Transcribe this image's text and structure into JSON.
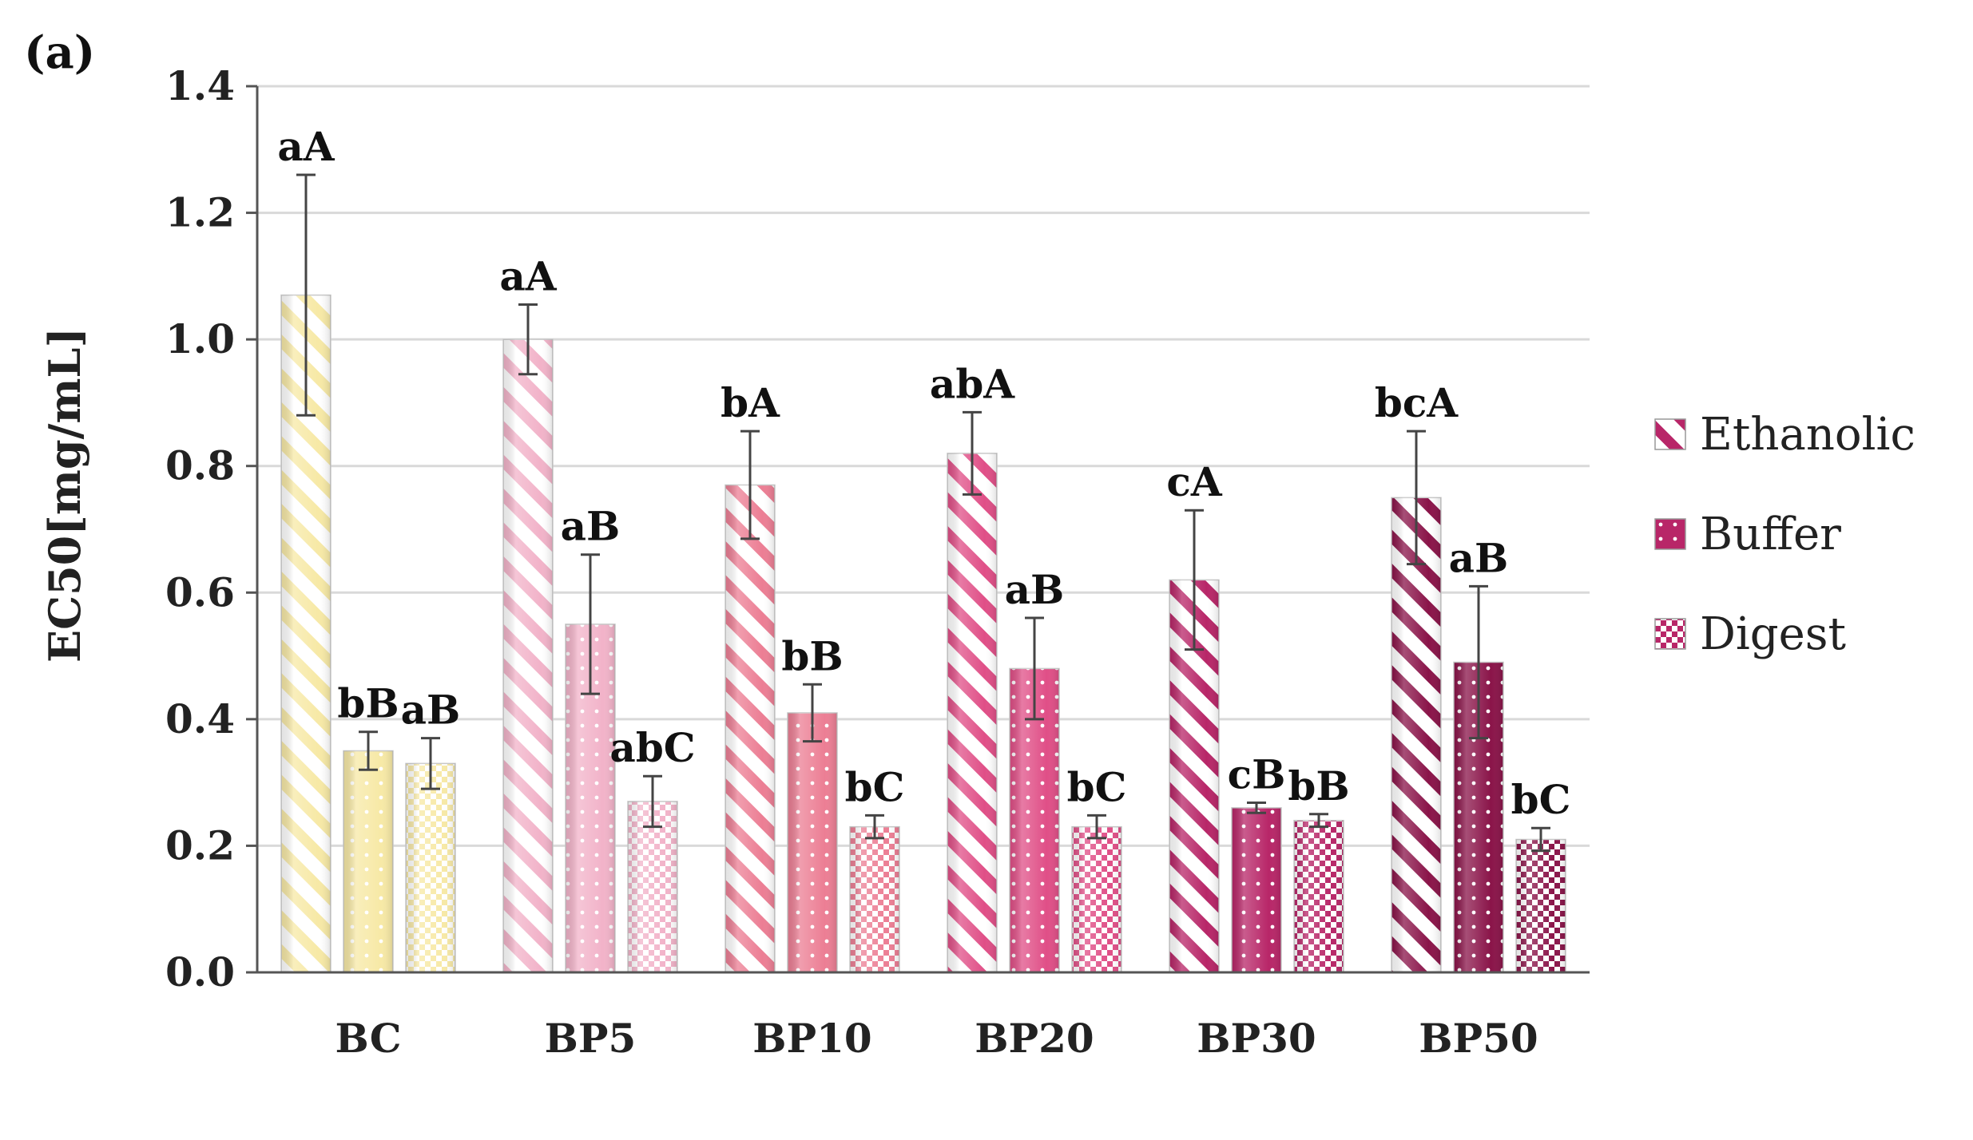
{
  "chart_data": {
    "panel": "(a)",
    "type": "bar",
    "title": "",
    "xlabel": "",
    "ylabel": "EC50[mg/mL]",
    "ylim": [
      0,
      1.4
    ],
    "yticks": [
      "0.0",
      "0.2",
      "0.4",
      "0.6",
      "0.8",
      "1.0",
      "1.2",
      "1.4"
    ],
    "grid": true,
    "legend_position": "right",
    "categories": [
      "BC",
      "BP5",
      "BP10",
      "BP20",
      "BP30",
      "BP50"
    ],
    "category_colors": [
      "#f7e9a6",
      "#f2b3c9",
      "#ec7e94",
      "#e04f87",
      "#b82668",
      "#8a1449"
    ],
    "series": [
      {
        "name": "Ethanolic",
        "pattern": "diagonal-stripes",
        "values": [
          1.07,
          1.0,
          0.77,
          0.82,
          0.62,
          0.75
        ],
        "errors": [
          0.19,
          0.055,
          0.085,
          0.065,
          0.11,
          0.105
        ],
        "labels": [
          "aA",
          "aA",
          "bA",
          "abA",
          "cA",
          "bcA"
        ]
      },
      {
        "name": "Buffer",
        "pattern": "dots",
        "values": [
          0.35,
          0.55,
          0.41,
          0.48,
          0.26,
          0.49
        ],
        "errors": [
          0.03,
          0.11,
          0.045,
          0.08,
          0.008,
          0.12
        ],
        "labels": [
          "bB",
          "aB",
          "bB",
          "aB",
          "cB",
          "aB"
        ]
      },
      {
        "name": "Digest",
        "pattern": "checkerboard",
        "values": [
          0.33,
          0.27,
          0.23,
          0.23,
          0.24,
          0.21
        ],
        "errors": [
          0.04,
          0.04,
          0.018,
          0.018,
          0.01,
          0.018
        ],
        "labels": [
          "aB",
          "abC",
          "bC",
          "bC",
          "bB",
          "bC"
        ]
      }
    ]
  }
}
